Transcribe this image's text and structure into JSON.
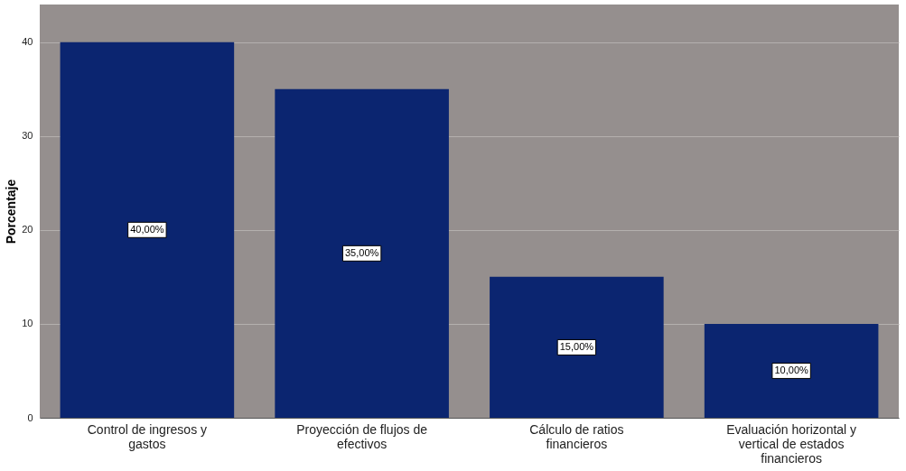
{
  "chart_data": {
    "type": "bar",
    "ylabel": "Porcentaje",
    "categories": [
      "Control de ingresos y gastos",
      "Proyección de flujos de efectivos",
      "Cálculo de ratios financieros",
      "Evaluación horizontal y vertical de estados financieros"
    ],
    "values": [
      40,
      35,
      15,
      10
    ],
    "value_labels": [
      "40,00%",
      "35,00%",
      "15,00%",
      "10,00%"
    ],
    "color": "#0b2570",
    "ylim": [
      0,
      44
    ],
    "yticks": [
      0,
      10,
      20,
      30,
      40
    ],
    "grid": "y"
  }
}
